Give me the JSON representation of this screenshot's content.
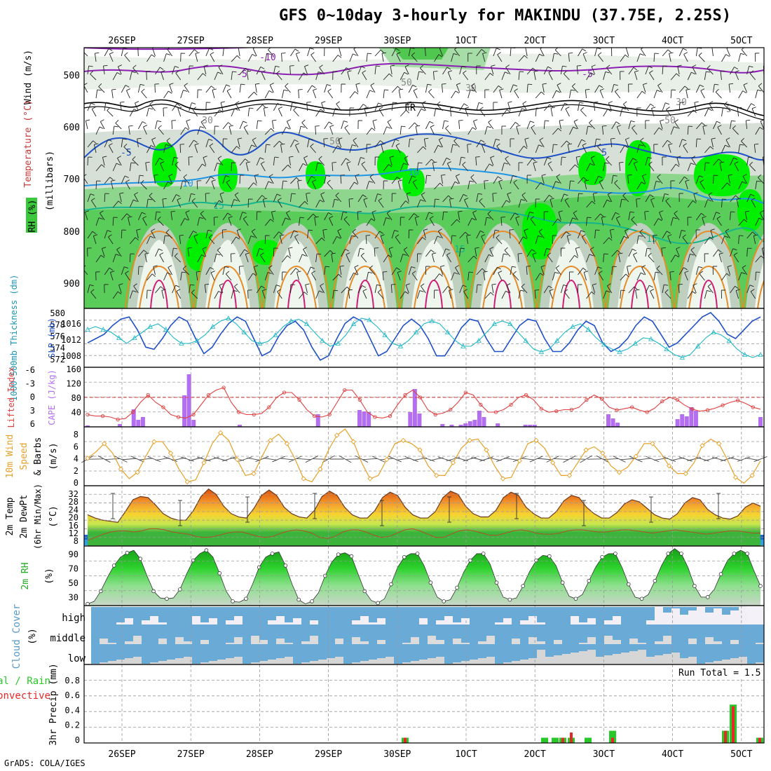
{
  "title": "GFS 0~10day 3-hourly for MAKINDU (37.75E, 2.25S)",
  "credit": "GrADS: COLA/IGES",
  "date_labels": [
    "26SEP",
    "27SEP",
    "28SEP",
    "29SEP",
    "30SEP",
    "1OCT",
    "2OCT",
    "3OCT",
    "4OCT",
    "5OCT"
  ],
  "colors": {
    "grid": "#b0b0b0",
    "temp_blue": "#1e50c8",
    "temp_lightblue": "#1e96e6",
    "temp_teal": "#14b48c",
    "temp_orange": "#e68c28",
    "temp_magenta": "#d21e78",
    "temp_purple": "#8c1eb4",
    "rh_green": "#3cc83c",
    "rh_lightgreen": "#00f000",
    "cloud_blue": "#6aaad6",
    "cape": "#b46ef0",
    "li_red": "#e04040",
    "wind_orange": "#e6a028",
    "precip_green": "#28c828",
    "precip_red": "#e62828"
  },
  "panels": {
    "upper_air": {
      "ylabel_wind": "Wind (m/s)",
      "ylabel_temp": "Temperature (°C)",
      "ylabel_rh": "RH (%)",
      "ylabel_units": "(millibars)",
      "y_ticks": [
        "500",
        "600",
        "700",
        "800",
        "900"
      ],
      "contour_labels": [
        "-10",
        "-5",
        "-5",
        "FR",
        "-5",
        "5",
        "10",
        "10",
        "5",
        "15",
        "15",
        "15",
        "30",
        "30",
        "30",
        "50",
        "50",
        "50"
      ]
    },
    "slp": {
      "ylabel_left": "1000-500mb Thickness (dm)",
      "ylabel_right": "SLP (mb)",
      "left_ticks": [
        "580",
        "578",
        "576",
        "574",
        "572"
      ],
      "right_ticks": [
        "1016",
        "1012",
        "1008"
      ]
    },
    "cape_li": {
      "ylabel_left": "Lifted Index",
      "ylabel_right": "CAPE (J/kg)",
      "li_ticks": [
        "-6",
        "-3",
        "0",
        "3",
        "6"
      ],
      "cape_ticks": [
        "160",
        "120",
        "80",
        "40"
      ]
    },
    "wind10": {
      "ylabel_1": "10m Wind",
      "ylabel_2": "Speed",
      "ylabel_3": "& Barbs",
      "ylabel_units": "(m/s)",
      "ticks": [
        "8",
        "6",
        "4",
        "2",
        "0"
      ]
    },
    "temp2m": {
      "ylabel_1": "2m Temp",
      "ylabel_2": "2m DewPt",
      "ylabel_3": "(6hr Min/Max)",
      "ylabel_units": "(°C)",
      "ticks": [
        "32",
        "28",
        "24",
        "20",
        "16",
        "12",
        "8"
      ]
    },
    "rh2m": {
      "ylabel": "2m RH",
      "ylabel_units": "(%)",
      "ticks": [
        "90",
        "70",
        "50",
        "30"
      ]
    },
    "cloud": {
      "ylabel": "Cloud Cover",
      "ylabel_units": "(%)",
      "levels": [
        "high",
        "middle",
        "low"
      ]
    },
    "precip": {
      "ylabel_1": "Total / Rain",
      "ylabel_2": "Convective",
      "ylabel_3": "3hr Precip (mm)",
      "ticks": [
        "0.8",
        "0.6",
        "0.4",
        "0.2",
        "0"
      ],
      "run_total": "Run Total = 1.5"
    }
  },
  "chart_data": [
    {
      "type": "line",
      "title": "Sea-level pressure and 1000-500mb thickness",
      "x_unit": "days from 26SEP 00Z (3-hourly)",
      "series": [
        {
          "name": "SLP (mb)",
          "ylim": [
            1006,
            1018
          ],
          "values": [
            1011,
            1012,
            1013,
            1015,
            1016.5,
            1017,
            1014,
            1010,
            1009.5,
            1012,
            1015,
            1017,
            1016,
            1012,
            1008.5,
            1010,
            1013,
            1015.5,
            1017,
            1016,
            1012,
            1008,
            1009,
            1012.5,
            1015,
            1016,
            1014,
            1010,
            1007,
            1008,
            1012,
            1015.5,
            1017,
            1016,
            1012,
            1008,
            1009,
            1012,
            1015,
            1016.5,
            1015,
            1012,
            1008,
            1008,
            1011,
            1014.5,
            1016.5,
            1016,
            1012,
            1009,
            1009,
            1012,
            1015,
            1016.5,
            1016,
            1012,
            1009,
            1009,
            1011,
            1014,
            1016,
            1015,
            1011,
            1009,
            1010,
            1012,
            1015,
            1017,
            1016,
            1013,
            1010,
            1011,
            1013,
            1015,
            1017,
            1018,
            1016,
            1013,
            1012,
            1014,
            1016,
            1017
          ]
        },
        {
          "name": "1000-500mb Thickness (dm)",
          "ylim": [
            571,
            581
          ],
          "values": [
            577.5,
            578,
            577.5,
            577,
            576,
            575,
            576,
            577,
            578,
            578.5,
            577.5,
            576,
            575,
            575,
            575.5,
            576.5,
            578,
            579,
            579.5,
            578.5,
            577,
            575.5,
            575,
            575.3,
            576.5,
            578,
            579,
            579.3,
            578.5,
            577,
            575.5,
            574.5,
            575,
            576.5,
            578.5,
            579.5,
            579.2,
            578,
            576.5,
            575,
            574.5,
            575.5,
            577,
            578.5,
            579,
            578.5,
            577,
            575.5,
            574.5,
            574.5,
            575.5,
            577,
            578.5,
            579,
            578.5,
            577,
            575.5,
            574,
            573.5,
            574,
            575.5,
            577,
            578,
            578.5,
            577.5,
            576,
            574.8,
            574,
            573.5,
            574,
            575,
            576,
            575.8,
            575,
            574,
            573,
            572.5,
            573,
            574.5,
            576,
            577,
            576.5,
            575.5,
            574,
            573,
            572.5,
            573
          ]
        }
      ]
    },
    {
      "type": "bar+line",
      "title": "CAPE and Lifted Index",
      "series": [
        {
          "name": "CAPE (J/kg)",
          "ylim": [
            0,
            160
          ],
          "values": [
            4,
            0,
            0,
            0,
            0,
            0,
            0,
            8,
            0,
            0,
            50,
            20,
            28,
            0,
            0,
            0,
            0,
            0,
            0,
            0,
            0,
            90,
            150,
            20,
            0,
            0,
            0,
            0,
            0,
            0,
            0,
            0,
            0,
            6,
            0,
            0,
            0,
            0,
            0,
            0,
            0,
            0,
            0,
            0,
            0,
            0,
            0,
            0,
            0,
            0,
            36,
            0,
            0,
            0,
            0,
            0,
            0,
            0,
            0,
            48,
            44,
            42,
            0,
            0,
            0,
            0,
            0,
            0,
            0,
            0,
            42,
            108,
            38,
            0,
            0,
            0,
            0,
            8,
            0,
            6,
            0,
            6,
            10,
            16,
            20,
            46,
            28,
            0,
            0,
            10,
            0,
            0,
            0,
            0,
            0,
            6,
            6,
            6,
            0,
            0,
            0,
            0,
            0,
            0,
            0,
            0,
            0,
            0,
            0,
            0,
            0,
            0,
            0,
            36,
            24,
            12,
            0,
            0,
            0,
            0,
            0,
            0,
            0,
            0,
            0,
            0,
            0,
            0,
            22,
            36,
            30,
            56,
            46,
            0,
            0,
            0,
            0,
            0,
            0,
            0,
            0,
            0,
            0,
            0,
            0,
            0,
            28
          ]
        },
        {
          "name": "Lifted Index",
          "ylim": [
            6,
            -6
          ],
          "values": [
            3.5,
            3.8,
            3.8,
            4,
            4.5,
            4.3,
            3,
            1,
            -0.5,
            1,
            2,
            3.5,
            4,
            4.2,
            3.5,
            1.5,
            -0.5,
            -1.5,
            -2,
            1,
            3,
            3.5,
            3.5,
            3.3,
            2,
            0,
            -1,
            -1,
            0.5,
            2.5,
            3.8,
            4,
            3.5,
            1,
            -1.5,
            -1.5,
            0.5,
            3,
            4,
            4.2,
            3.8,
            1.5,
            -0.5,
            -1.5,
            0,
            2.5,
            3.5,
            3.2,
            2.5,
            1,
            -1,
            -0.5,
            1.5,
            3,
            3,
            2.5,
            1.5,
            0,
            -0.5,
            0.5,
            2.3,
            3,
            2.8,
            2.5,
            2.5,
            2,
            0.5,
            -0.5,
            0.3,
            2,
            2.6,
            2.3,
            2,
            2.6,
            3,
            2.2,
            0.8,
            0,
            0.5,
            1.6,
            2.4,
            2.8,
            2.6,
            2.2,
            1.6,
            1,
            0.6,
            1.2,
            2,
            2.4
          ]
        }
      ]
    },
    {
      "type": "line",
      "title": "10m wind speed (m/s)",
      "ylim": [
        0,
        8
      ],
      "values": [
        4.2,
        5.2,
        6.5,
        5,
        2.5,
        1,
        2,
        4.5,
        6.8,
        6.8,
        5,
        2.5,
        0.5,
        0.8,
        3.5,
        6.5,
        8.2,
        7,
        4,
        1.5,
        1.8,
        4.5,
        7,
        8,
        6.5,
        4,
        1,
        0.5,
        2.5,
        5.5,
        7.8,
        8.8,
        6.8,
        3.5,
        1,
        1.5,
        4,
        6.5,
        7,
        6.5,
        5.5,
        3,
        1.5,
        1.5,
        3.5,
        5.8,
        7,
        7.2,
        5.5,
        3,
        1,
        1.2,
        3.8,
        6.5,
        7,
        5.8,
        3.5,
        1.5,
        1.5,
        3.5,
        5.5,
        6,
        5,
        3,
        2,
        2.8,
        4.5,
        6.5,
        6.5,
        5,
        3,
        1.8,
        1.8,
        3.5,
        6.2,
        7.2,
        6.5,
        4,
        1.2,
        0.3,
        1.5,
        3.8
      ]
    },
    {
      "type": "area",
      "title": "2m temperature and dew point (°C)",
      "ylim": [
        6,
        34
      ],
      "series": [
        {
          "name": "2m Temp",
          "values": [
            20.5,
            19,
            18,
            17.5,
            17,
            22,
            27.5,
            29,
            28.5,
            25,
            21,
            19,
            18,
            18,
            22.5,
            29,
            32.5,
            30,
            24.5,
            21,
            19.5,
            19,
            23.5,
            29.5,
            32,
            29.5,
            24,
            21,
            19.5,
            19,
            22.5,
            29,
            31.5,
            29.5,
            24,
            20.5,
            19,
            19,
            22.5,
            28.5,
            31,
            29.5,
            24,
            20.5,
            19,
            19,
            22,
            28.5,
            31.5,
            30,
            24.5,
            21,
            19.5,
            19.5,
            22.5,
            28.5,
            31,
            29.5,
            24,
            21,
            19,
            19,
            22,
            27,
            29.5,
            28.5,
            24,
            21,
            19,
            19,
            21.5,
            25.5,
            27.5,
            26.5,
            23.5,
            20.5,
            19,
            18.5,
            21,
            26,
            28.5,
            27.5,
            23,
            20.5,
            19,
            18.5,
            20,
            24,
            26,
            24.5
          ]
        },
        {
          "name": "2m DewPt",
          "values": [
            8.5,
            10,
            11.5,
            12.5,
            13,
            13,
            12.5,
            13,
            14,
            14,
            13.5,
            12.5,
            12,
            11.5,
            10.5,
            10,
            10.2,
            11,
            12,
            12.5,
            12.5,
            11.5,
            10.5,
            10,
            10.5,
            12,
            13,
            13.5,
            13,
            12,
            10,
            9.5,
            10.5,
            12.5,
            13.5,
            13.5,
            12.5,
            11,
            10,
            10.5,
            12,
            13.5,
            14,
            13,
            11.5,
            10,
            10,
            11.5,
            13,
            13.5,
            13,
            12,
            11,
            11,
            12,
            13,
            13.5,
            13,
            12,
            11.5,
            11.5,
            12,
            13,
            13.5,
            13.5,
            13,
            12.5,
            12.5,
            13,
            13.5,
            13.5,
            13,
            12.5,
            12,
            12.5,
            13,
            13.5,
            13,
            12.5,
            12,
            11.5,
            12,
            12.5,
            13,
            13,
            12.5,
            12,
            12
          ]
        }
      ]
    },
    {
      "type": "area",
      "title": "2m relative humidity (%)",
      "ylim": [
        25,
        95
      ],
      "values": [
        27,
        30,
        42,
        58,
        72,
        82,
        87,
        90,
        80,
        60,
        42,
        34,
        33,
        34,
        44,
        62,
        78,
        86,
        90,
        82,
        63,
        42,
        30,
        29,
        33,
        50,
        70,
        82,
        86,
        88,
        72,
        50,
        32,
        27,
        30,
        40,
        60,
        76,
        85,
        87,
        83,
        62,
        42,
        31,
        28,
        33,
        50,
        70,
        82,
        86,
        86,
        72,
        52,
        35,
        30,
        32,
        46,
        64,
        78,
        86,
        86,
        74,
        52,
        35,
        32,
        34,
        48,
        65,
        78,
        84,
        83,
        72,
        52,
        36,
        33,
        38,
        54,
        70,
        82,
        86,
        86,
        70,
        50,
        35,
        33,
        38,
        54,
        72,
        86,
        92,
        86,
        70,
        48,
        35,
        35,
        44,
        62,
        78,
        86,
        90,
        86,
        66,
        48
      ]
    },
    {
      "type": "bar",
      "title": "3hr precipitation (mm)",
      "ylim": [
        0,
        0.9
      ],
      "run_total": 1.5,
      "series": [
        {
          "name": "Total",
          "values": [
            0.06,
            0.06,
            0.06,
            0.06,
            0.06,
            0.06,
            0.14,
            0.14,
            0.44,
            0.06
          ]
        },
        {
          "name": "Convective",
          "values": [
            0.06,
            0,
            0,
            0.06,
            0.12,
            0,
            0.06,
            0.14,
            0.42,
            0.06
          ]
        }
      ]
    }
  ]
}
